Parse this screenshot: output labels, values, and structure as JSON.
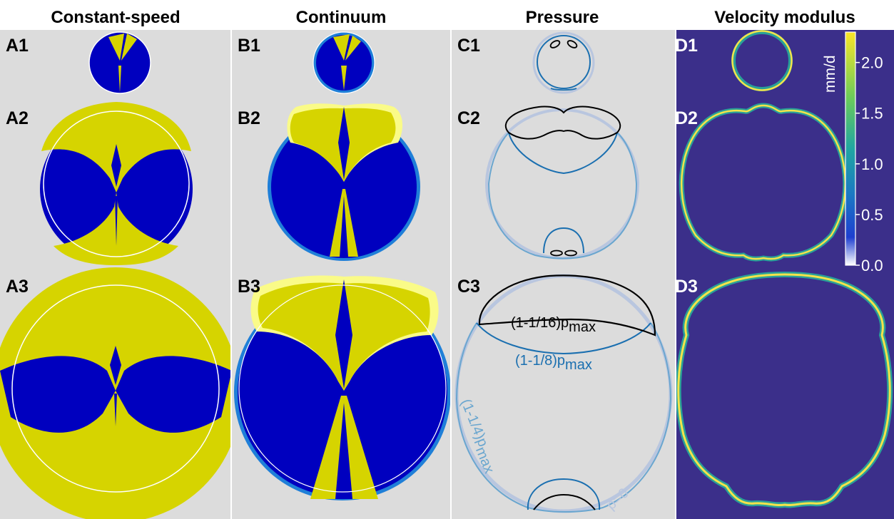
{
  "columns": {
    "A": "Constant-speed",
    "B": "Continuum",
    "C": "Pressure",
    "D": "Velocity modulus"
  },
  "panel_labels": {
    "A1": "A1",
    "A2": "A2",
    "A3": "A3",
    "B1": "B1",
    "B2": "B2",
    "B3": "B3",
    "C1": "C1",
    "C2": "C2",
    "C3": "C3",
    "D1": "D1",
    "D2": "D2",
    "D3": "D3"
  },
  "pressure_labels": {
    "p16_main": "(1-1/16)p",
    "p16_sub": "max",
    "p8_main": "(1-1/8)p",
    "p8_sub": "max",
    "p4_main": "(1-1/4)p",
    "p4_sub": "max",
    "p0": "p=0"
  },
  "colorbar": {
    "unit": "mm/d",
    "ticks": [
      "2.0",
      "1.5",
      "1.0",
      "0.5",
      "0.0"
    ],
    "min": 0.0,
    "max": 2.3
  },
  "colors": {
    "panel_bg": "#dcdcdc",
    "velocity_bg": "#3b2f8a",
    "domain_blue": "#0000bf",
    "domain_yellow": "#d6d400",
    "pale_yellow": "#fafb88",
    "edge_blue": "#1f7fd8",
    "contour_black": "#000000",
    "contour_dark": "#1a6fb0",
    "contour_light": "#6aa6cf",
    "contour_faint": "#b9c6df"
  }
}
